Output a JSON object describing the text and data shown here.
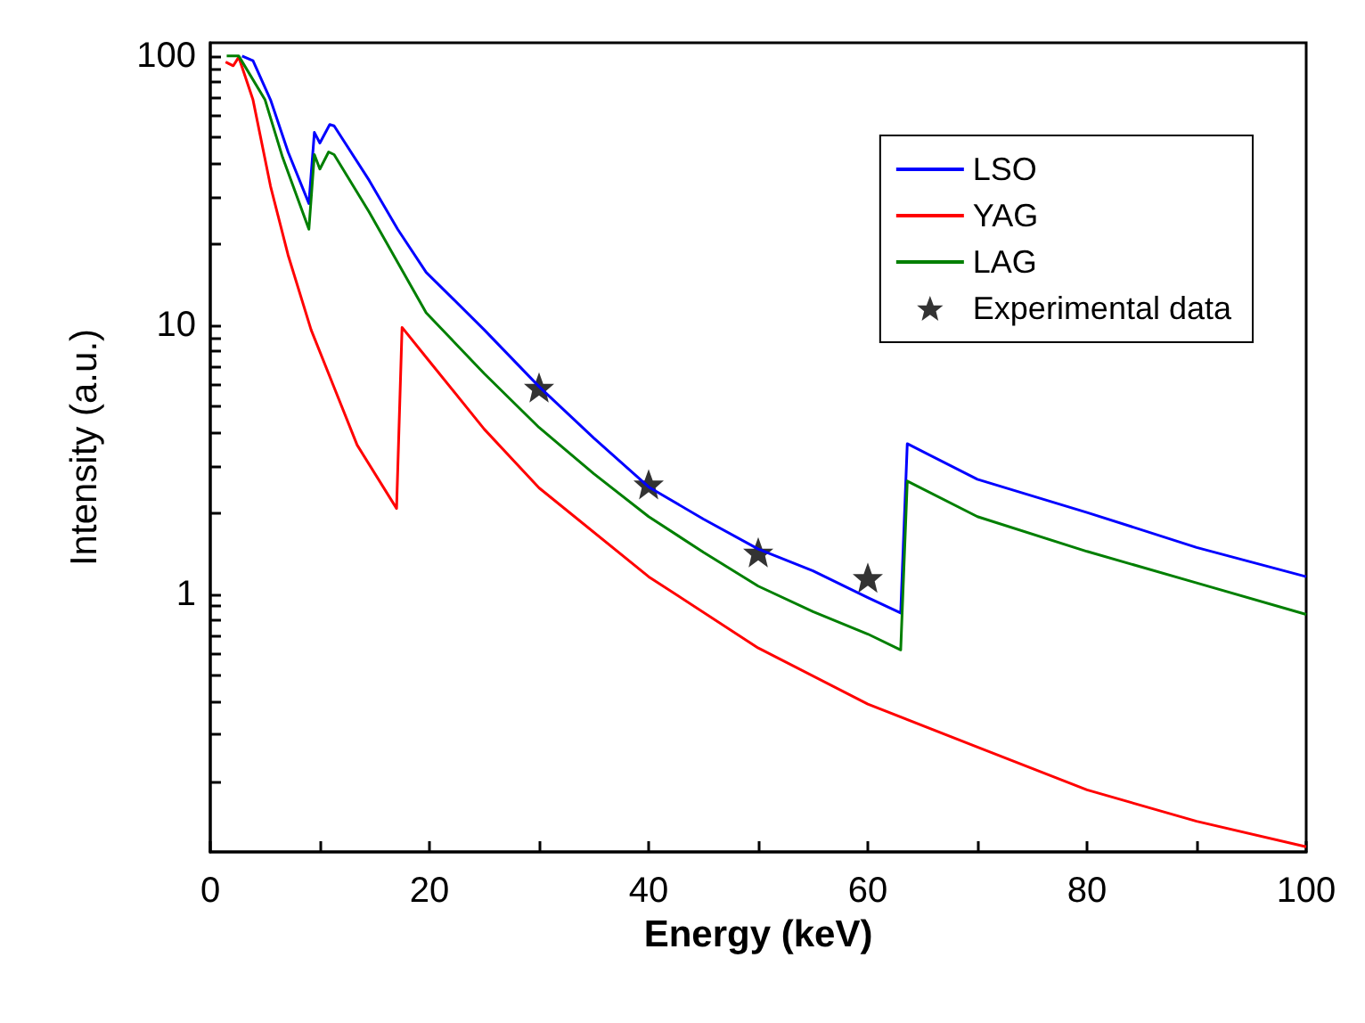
{
  "chart_data": {
    "type": "line",
    "xlabel": "Energy (keV)",
    "ylabel": "Intensity (a.u.)",
    "log": "y",
    "grid": false,
    "legend": "top right",
    "marker": "none",
    "line_style": "solid",
    "xlim": [
      0,
      100
    ],
    "xticks": [
      0,
      {
        "value": 10,
        "label": null
      },
      20,
      {
        "value": 30,
        "label": null
      },
      40,
      {
        "value": 50,
        "label": null
      },
      60,
      {
        "value": 70,
        "label": null
      },
      80,
      {
        "value": 90,
        "label": null
      },
      100
    ],
    "ylim": [
      0.11,
      112
    ],
    "yticks": [
      {
        "value": 0.2,
        "label": null
      },
      {
        "value": 0.3,
        "label": null
      },
      {
        "value": 0.4,
        "label": null
      },
      {
        "value": 0.5,
        "label": null
      },
      {
        "value": 0.6,
        "label": null
      },
      {
        "value": 0.7,
        "label": null
      },
      {
        "value": 0.8,
        "label": null
      },
      {
        "value": 0.9,
        "label": null
      },
      1,
      {
        "value": 2,
        "label": null
      },
      {
        "value": 3,
        "label": null
      },
      {
        "value": 4,
        "label": null
      },
      {
        "value": 5,
        "label": null
      },
      {
        "value": 6,
        "label": null
      },
      {
        "value": 7,
        "label": null
      },
      {
        "value": 8,
        "label": null
      },
      {
        "value": 9,
        "label": null
      },
      10,
      {
        "value": 20,
        "label": null
      },
      {
        "value": 30,
        "label": null
      },
      {
        "value": 40,
        "label": null
      },
      {
        "value": 50,
        "label": null
      },
      {
        "value": 60,
        "label": null
      },
      {
        "value": 70,
        "label": null
      },
      {
        "value": 80,
        "label": null
      },
      {
        "value": 90,
        "label": null
      },
      100
    ],
    "series": [
      {
        "name": "LSO",
        "color": "#0000ff",
        "x": [
          2.9,
          3.9,
          5.5,
          7.1,
          9.0,
          9.5,
          10.0,
          10.9,
          11.3,
          14.5,
          17.1,
          19.7,
          25,
          30,
          35,
          40,
          45,
          50,
          55,
          60,
          63,
          63.6,
          70,
          80,
          90,
          100
        ],
        "values": [
          100,
          96,
          68.7,
          44,
          28.3,
          52,
          47.5,
          55.6,
          55,
          34.5,
          22.7,
          15.7,
          9.6,
          5.9,
          3.8,
          2.5,
          1.9,
          1.47,
          1.22,
          0.97,
          0.85,
          3.62,
          2.67,
          2.01,
          1.49,
          1.16
        ]
      },
      {
        "name": "YAG",
        "color": "#ff0000",
        "x": [
          1.4,
          2.1,
          2.6,
          3.9,
          5.5,
          7.1,
          9.2,
          11.3,
          13.4,
          17.0,
          17.5,
          19.8,
          25,
          30,
          40,
          50,
          60,
          70,
          80,
          90,
          100
        ],
        "values": [
          95,
          92,
          99,
          68.7,
          32.8,
          18.2,
          9.6,
          5.86,
          3.58,
          2.08,
          9.8,
          7.5,
          4.1,
          2.48,
          1.16,
          0.63,
          0.39,
          0.27,
          0.187,
          0.143,
          0.115
        ]
      },
      {
        "name": "LAG",
        "color": "#007f00",
        "x": [
          1.5,
          2.6,
          5.0,
          6.6,
          9.0,
          9.5,
          10.0,
          10.8,
          11.3,
          14.5,
          19.7,
          25,
          30,
          35,
          40,
          45,
          50,
          55,
          60,
          63,
          63.6,
          70,
          80,
          90,
          100
        ],
        "values": [
          100,
          100,
          68.7,
          42,
          22.7,
          43,
          38,
          44,
          43,
          26.3,
          11.1,
          6.6,
          4.16,
          2.8,
          1.94,
          1.43,
          1.07,
          0.86,
          0.71,
          0.62,
          2.63,
          1.94,
          1.44,
          1.1,
          0.84
        ]
      },
      {
        "name": "Experimental data",
        "type": "scatter",
        "marker": "star",
        "color": "#000000",
        "x": [
          30,
          40,
          50,
          60
        ],
        "values": [
          5.86,
          2.56,
          1.43,
          1.15
        ]
      }
    ]
  }
}
